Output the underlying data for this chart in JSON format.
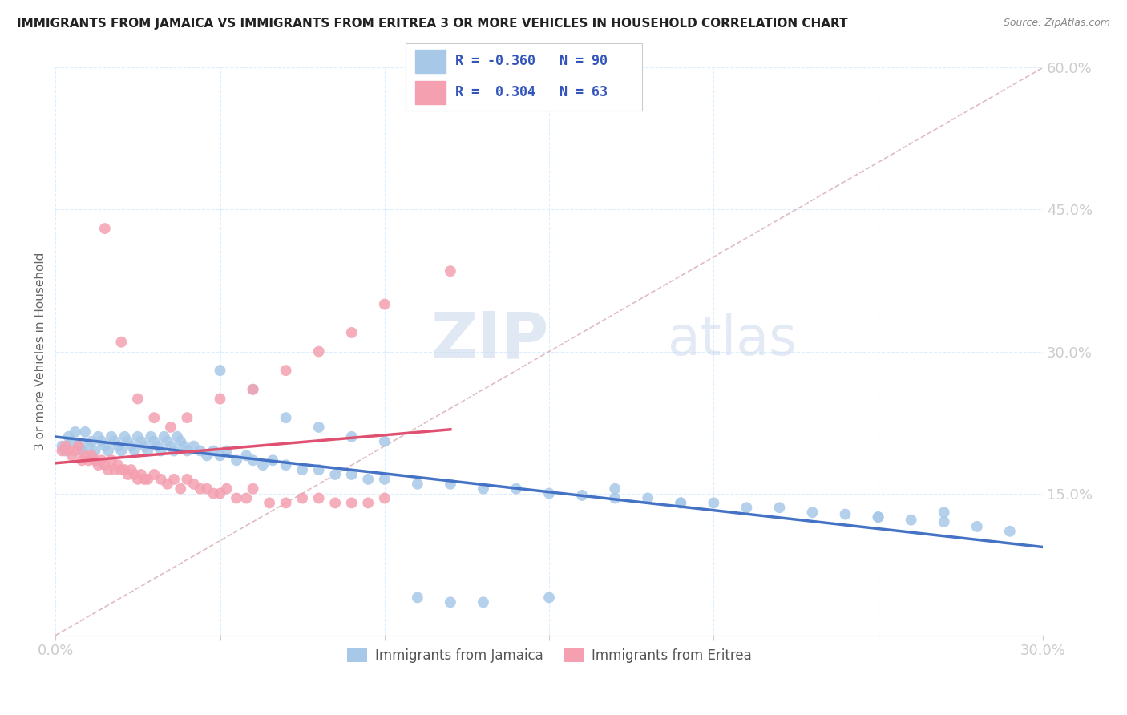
{
  "title": "IMMIGRANTS FROM JAMAICA VS IMMIGRANTS FROM ERITREA 3 OR MORE VEHICLES IN HOUSEHOLD CORRELATION CHART",
  "source": "Source: ZipAtlas.com",
  "ylabel": "3 or more Vehicles in Household",
  "xlim": [
    0.0,
    0.3
  ],
  "ylim": [
    0.0,
    0.6
  ],
  "r_jamaica": -0.36,
  "n_jamaica": 90,
  "r_eritrea": 0.304,
  "n_eritrea": 63,
  "jamaica_color": "#a8c8e8",
  "eritrea_color": "#f4a0b0",
  "jamaica_line_color": "#4472c4",
  "eritrea_line_color": "#e05070",
  "ref_line_color": "#d0a0a8",
  "background_color": "#ffffff",
  "title_color": "#222222",
  "axis_label_color": "#4472c4",
  "watermark_zip_color": "#c8d8ec",
  "watermark_atlas_color": "#c8d8ec",
  "legend_r_color": "#3355bb",
  "grid_color": "#ddeeff",
  "jamaica_line_intercept": 0.205,
  "jamaica_line_slope": -0.385,
  "eritrea_line_intercept": 0.155,
  "eritrea_line_slope": 2.1,
  "eritrea_line_xmax": 0.1,
  "jamaica_x": [
    0.002,
    0.003,
    0.004,
    0.005,
    0.006,
    0.007,
    0.008,
    0.009,
    0.01,
    0.011,
    0.012,
    0.013,
    0.014,
    0.015,
    0.016,
    0.017,
    0.018,
    0.019,
    0.02,
    0.021,
    0.022,
    0.023,
    0.024,
    0.025,
    0.026,
    0.027,
    0.028,
    0.029,
    0.03,
    0.031,
    0.032,
    0.033,
    0.034,
    0.035,
    0.036,
    0.037,
    0.038,
    0.039,
    0.04,
    0.042,
    0.044,
    0.046,
    0.048,
    0.05,
    0.052,
    0.055,
    0.058,
    0.06,
    0.063,
    0.066,
    0.07,
    0.075,
    0.08,
    0.085,
    0.09,
    0.095,
    0.1,
    0.11,
    0.12,
    0.13,
    0.14,
    0.15,
    0.16,
    0.17,
    0.18,
    0.19,
    0.2,
    0.21,
    0.22,
    0.23,
    0.24,
    0.25,
    0.26,
    0.27,
    0.28,
    0.29,
    0.05,
    0.06,
    0.07,
    0.08,
    0.09,
    0.1,
    0.11,
    0.12,
    0.13,
    0.15,
    0.17,
    0.19,
    0.25,
    0.27
  ],
  "jamaica_y": [
    0.2,
    0.195,
    0.21,
    0.205,
    0.215,
    0.2,
    0.195,
    0.215,
    0.2,
    0.205,
    0.195,
    0.21,
    0.205,
    0.2,
    0.195,
    0.21,
    0.205,
    0.2,
    0.195,
    0.21,
    0.205,
    0.2,
    0.195,
    0.21,
    0.205,
    0.2,
    0.195,
    0.21,
    0.205,
    0.2,
    0.195,
    0.21,
    0.205,
    0.2,
    0.195,
    0.21,
    0.205,
    0.2,
    0.195,
    0.2,
    0.195,
    0.19,
    0.195,
    0.19,
    0.195,
    0.185,
    0.19,
    0.185,
    0.18,
    0.185,
    0.18,
    0.175,
    0.175,
    0.17,
    0.17,
    0.165,
    0.165,
    0.16,
    0.16,
    0.155,
    0.155,
    0.15,
    0.148,
    0.145,
    0.145,
    0.14,
    0.14,
    0.135,
    0.135,
    0.13,
    0.128,
    0.125,
    0.122,
    0.12,
    0.115,
    0.11,
    0.28,
    0.26,
    0.23,
    0.22,
    0.21,
    0.205,
    0.04,
    0.035,
    0.035,
    0.04,
    0.155,
    0.14,
    0.125,
    0.13
  ],
  "eritrea_x": [
    0.002,
    0.003,
    0.004,
    0.005,
    0.006,
    0.007,
    0.008,
    0.009,
    0.01,
    0.011,
    0.012,
    0.013,
    0.014,
    0.015,
    0.016,
    0.017,
    0.018,
    0.019,
    0.02,
    0.021,
    0.022,
    0.023,
    0.024,
    0.025,
    0.026,
    0.027,
    0.028,
    0.03,
    0.032,
    0.034,
    0.036,
    0.038,
    0.04,
    0.042,
    0.044,
    0.046,
    0.048,
    0.05,
    0.052,
    0.055,
    0.058,
    0.06,
    0.065,
    0.07,
    0.075,
    0.08,
    0.085,
    0.09,
    0.095,
    0.1,
    0.015,
    0.02,
    0.025,
    0.03,
    0.035,
    0.04,
    0.05,
    0.06,
    0.07,
    0.08,
    0.09,
    0.1,
    0.12
  ],
  "eritrea_y": [
    0.195,
    0.2,
    0.195,
    0.19,
    0.195,
    0.2,
    0.185,
    0.19,
    0.185,
    0.19,
    0.185,
    0.18,
    0.185,
    0.18,
    0.175,
    0.185,
    0.175,
    0.18,
    0.175,
    0.175,
    0.17,
    0.175,
    0.17,
    0.165,
    0.17,
    0.165,
    0.165,
    0.17,
    0.165,
    0.16,
    0.165,
    0.155,
    0.165,
    0.16,
    0.155,
    0.155,
    0.15,
    0.15,
    0.155,
    0.145,
    0.145,
    0.155,
    0.14,
    0.14,
    0.145,
    0.145,
    0.14,
    0.14,
    0.14,
    0.145,
    0.43,
    0.31,
    0.25,
    0.23,
    0.22,
    0.23,
    0.25,
    0.26,
    0.28,
    0.3,
    0.32,
    0.35,
    0.385
  ]
}
